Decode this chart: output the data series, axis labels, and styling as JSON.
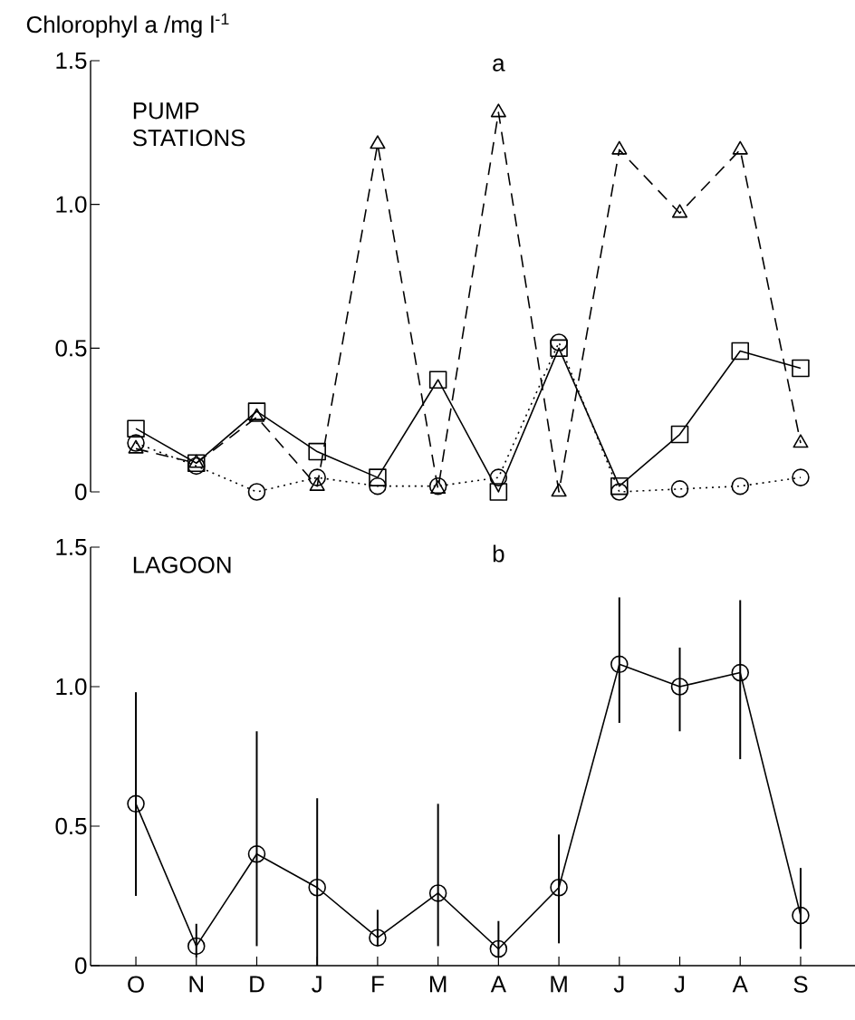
{
  "chart_data": [
    {
      "type": "line",
      "title": "a",
      "ylabel": "Chlorophyl a /mg l$^{-1}$",
      "annotations": [
        "PUMP STATIONS"
      ],
      "categories": [
        null,
        null,
        null,
        null,
        null,
        null,
        null,
        null,
        null,
        null,
        null,
        null
      ],
      "tick_labels": "y",
      "ylim": [
        0,
        1.5
      ],
      "yticks": [
        0,
        0.5,
        {
          "value": 1,
          "label": "1.0"
        },
        1.5
      ],
      "series": [
        {
          "color": "#000000",
          "marker": "triangle",
          "line_style": "dashed",
          "values": [
            0.15,
            0.1,
            0.26,
            0.02,
            1.21,
            0.01,
            1.32,
            0.0,
            1.19,
            0.97,
            1.19,
            0.17
          ]
        },
        {
          "color": "#000000",
          "marker": "square",
          "line_style": "solid",
          "values": [
            0.22,
            0.1,
            0.28,
            0.14,
            0.05,
            0.39,
            0.0,
            0.5,
            0.02,
            0.2,
            0.49,
            0.43
          ]
        },
        {
          "color": "#000000",
          "marker": "circle",
          "line_style": "dotted",
          "values": [
            0.17,
            0.09,
            0.0,
            0.05,
            0.02,
            0.02,
            0.05,
            0.52,
            0.0,
            0.01,
            0.02,
            0.05
          ]
        }
      ]
    },
    {
      "type": "line",
      "title": "b",
      "annotations": [
        "LAGOON"
      ],
      "categories": [
        "O",
        "N",
        "D",
        "J",
        "F",
        "M",
        "A",
        "M",
        "J",
        "J",
        "A",
        "S"
      ],
      "ylim": [
        0,
        1.5
      ],
      "yticks": [
        0,
        0.5,
        {
          "value": 1,
          "label": "1.0"
        },
        1.5
      ],
      "series": [
        {
          "color": "#000000",
          "marker": "circle",
          "line_style": "solid",
          "values": [
            0.58,
            0.07,
            0.4,
            0.28,
            0.1,
            0.26,
            0.06,
            0.28,
            1.08,
            1.0,
            1.05,
            0.18
          ],
          "errors": [
            [
              0.25,
              0.98
            ],
            [
              0.03,
              0.15
            ],
            [
              0.07,
              0.84
            ],
            [
              0.0,
              0.6
            ],
            [
              0.07,
              0.2
            ],
            [
              0.07,
              0.58
            ],
            [
              0.03,
              0.16
            ],
            [
              0.08,
              0.47
            ],
            [
              0.87,
              1.32
            ],
            [
              0.84,
              1.14
            ],
            [
              0.74,
              1.31
            ],
            [
              0.06,
              0.35
            ]
          ]
        }
      ]
    }
  ]
}
